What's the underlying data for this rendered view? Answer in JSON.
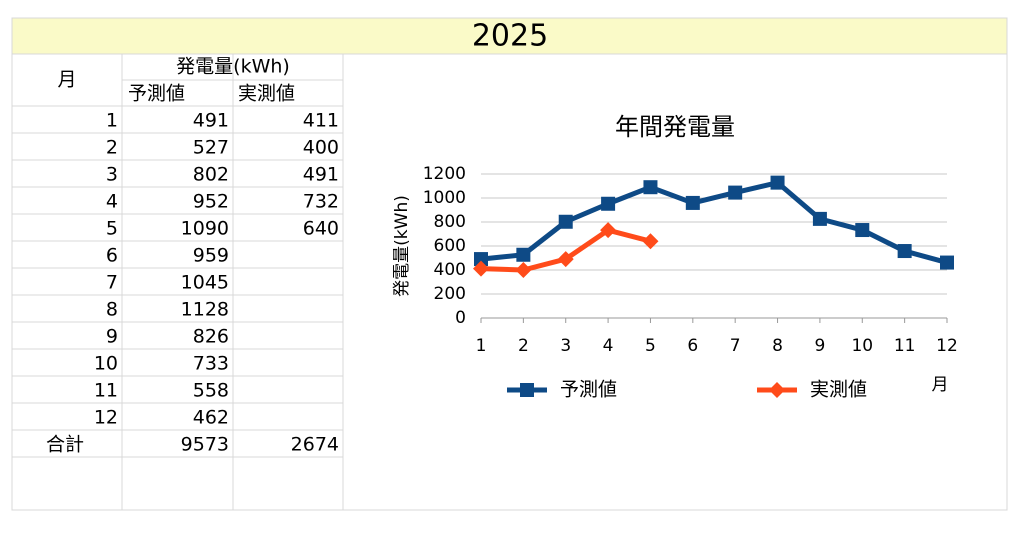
{
  "header": {
    "title": "2025"
  },
  "table": {
    "headers": [
      "月",
      "発電量(kWh)",
      "予測値",
      "実測値"
    ],
    "rows": [
      [
        1,
        491,
        411
      ],
      [
        2,
        527,
        400
      ],
      [
        3,
        802,
        491
      ],
      [
        4,
        952,
        732
      ],
      [
        5,
        1090,
        640
      ],
      [
        6,
        959,
        null
      ],
      [
        7,
        1045,
        null
      ],
      [
        8,
        1128,
        null
      ],
      [
        9,
        826,
        null
      ],
      [
        10,
        733,
        null
      ],
      [
        11,
        558,
        null
      ],
      [
        12,
        462,
        null
      ]
    ],
    "total": [
      "合計",
      9573,
      2674
    ]
  },
  "chart_data": {
    "type": "line",
    "title": "年間発電量",
    "y_label": "発電量(kWh)",
    "x_label": "月",
    "x": [
      1,
      2,
      3,
      4,
      5,
      6,
      7,
      8,
      9,
      10,
      11,
      12
    ],
    "xlim": [
      1,
      12
    ],
    "xticks": [
      1,
      2,
      3,
      4,
      5,
      6,
      7,
      8,
      9,
      10,
      11,
      12
    ],
    "ylim": [
      0,
      1200
    ],
    "yticks": [
      0,
      200,
      400,
      600,
      800,
      1000,
      1200
    ],
    "grid": true,
    "legend": "bottom",
    "series": [
      {
        "name": "予測値",
        "color": "#0e4a86",
        "marker": "square",
        "values": [
          491,
          527,
          802,
          952,
          1090,
          959,
          1045,
          1128,
          826,
          733,
          558,
          462
        ]
      },
      {
        "name": "実測値",
        "color": "#ff4b1a",
        "marker": "diamond",
        "values": [
          411,
          400,
          491,
          732,
          640,
          null,
          null,
          null,
          null,
          null,
          null,
          null
        ]
      }
    ]
  }
}
